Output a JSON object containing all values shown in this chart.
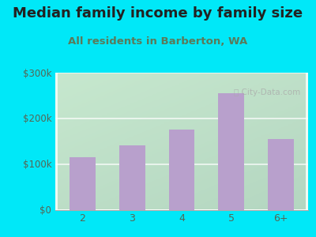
{
  "title": "Median family income by family size",
  "subtitle": "All residents in Barberton, WA",
  "categories": [
    "2",
    "3",
    "4",
    "5",
    "6+"
  ],
  "values": [
    115000,
    140000,
    175000,
    255000,
    155000
  ],
  "bar_color": "#b8a0cc",
  "background_outer": "#00e8f8",
  "title_color": "#222222",
  "subtitle_color": "#5a7a5a",
  "tick_color": "#556655",
  "ylim": [
    0,
    300000
  ],
  "yticks": [
    0,
    100000,
    200000,
    300000
  ],
  "ytick_labels": [
    "$0",
    "$100k",
    "$200k",
    "$300k"
  ],
  "title_fontsize": 13,
  "subtitle_fontsize": 9.5,
  "watermark": "ⓘ City-Data.com"
}
